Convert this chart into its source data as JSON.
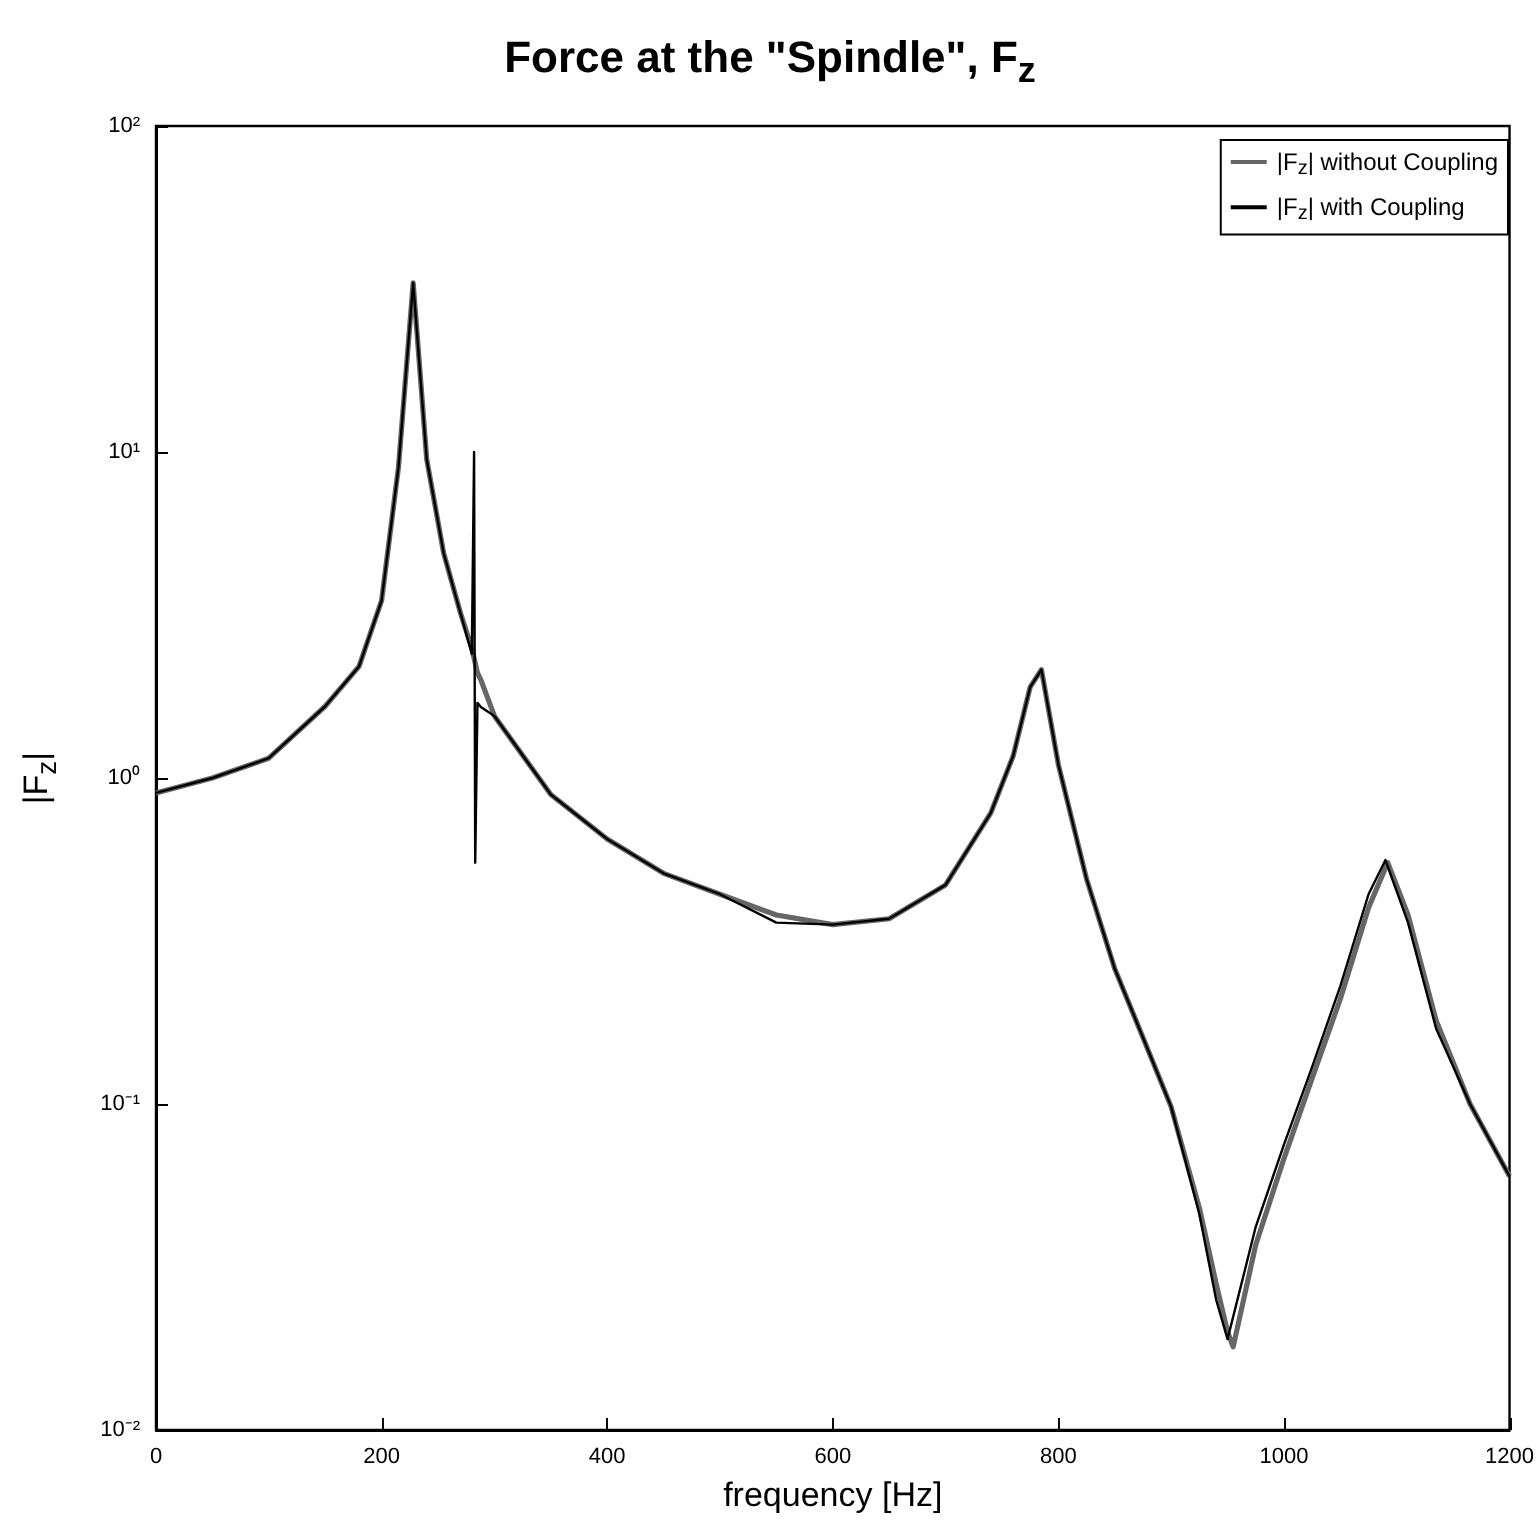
{
  "chart_data": {
    "type": "line",
    "title": "Force at the \"Spindle\", F$_{z}$",
    "xlabel": "frequency [Hz]",
    "ylabel": "|F$_{z}$|",
    "x": [
      0,
      50,
      100,
      150,
      180,
      200,
      215,
      228,
      240,
      255,
      270,
      280,
      282,
      283,
      285,
      288,
      300,
      350,
      400,
      450,
      500,
      550,
      600,
      650,
      700,
      740,
      760,
      775,
      785,
      800,
      825,
      850,
      875,
      900,
      925,
      940,
      950,
      955,
      975,
      1000,
      1025,
      1050,
      1075,
      1090,
      1092,
      1110,
      1135,
      1165,
      1200
    ],
    "series": [
      {
        "name": "|F$_{z}$| without Coupling",
        "color": "#666666",
        "values": [
          0.9,
          1.0,
          1.15,
          1.66,
          2.2,
          3.5,
          9,
          33,
          9.5,
          4.9,
          3.2,
          2.5,
          null,
          null,
          2.1,
          2.0,
          1.55,
          0.89,
          0.65,
          0.51,
          0.44,
          0.38,
          0.355,
          0.37,
          0.47,
          0.78,
          1.17,
          1.9,
          2.15,
          1.1,
          0.49,
          0.26,
          0.16,
          0.098,
          0.048,
          0.028,
          0.02,
          0.018,
          0.037,
          0.068,
          0.12,
          0.21,
          0.4,
          null,
          0.55,
          0.38,
          0.18,
          0.1,
          0.06
        ]
      },
      {
        "name": "|F$_{z}$| with Coupling",
        "color": "#000000",
        "values": [
          0.9,
          1.0,
          1.15,
          1.66,
          2.2,
          3.5,
          9,
          33,
          9.5,
          4.9,
          3.2,
          2.4,
          10,
          0.55,
          1.7,
          1.65,
          1.55,
          0.89,
          0.65,
          0.51,
          0.44,
          0.36,
          0.355,
          0.37,
          0.47,
          0.78,
          1.17,
          1.9,
          2.15,
          1.1,
          0.49,
          0.26,
          0.16,
          0.098,
          0.046,
          0.025,
          0.019,
          null,
          0.042,
          0.075,
          0.13,
          0.23,
          0.44,
          0.56,
          null,
          0.36,
          0.17,
          0.1,
          0.06
        ]
      }
    ],
    "xlim": [
      0,
      1200
    ],
    "xticks": [
      0,
      200,
      400,
      600,
      800,
      1000,
      1200
    ],
    "ylim": [
      0.01,
      100
    ],
    "yticks": [
      {
        "value": 0.01,
        "label": "10⁻²"
      },
      {
        "value": 0.1,
        "label": "10⁻¹"
      },
      {
        "value": 1,
        "label": "10⁰"
      },
      {
        "value": 10,
        "label": "10¹"
      },
      {
        "value": 100,
        "label": "10²"
      }
    ],
    "log": "y",
    "grid": false,
    "legend": "top right",
    "marker": "none",
    "line_style": "solid"
  }
}
